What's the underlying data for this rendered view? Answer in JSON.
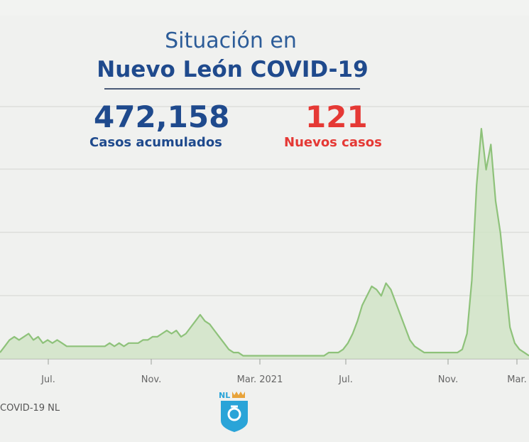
{
  "header": {
    "line1": "Situación en",
    "line2": "Nuevo León COVID-19"
  },
  "stats": {
    "cumulative_value": "472,158",
    "cumulative_label": "Casos acumulados",
    "new_value": "121",
    "new_label": "Nuevos casos"
  },
  "footer": {
    "source": "COVID-19 NL",
    "logo_text": "NL"
  },
  "colors": {
    "line": "#8ec27a",
    "fill": "#cfe3c4",
    "grid": "#d3d5d2",
    "accent_blue": "#1f4a8d",
    "accent_red": "#e53935"
  },
  "chart_data": {
    "type": "area",
    "title": "",
    "xlabel": "",
    "ylabel": "",
    "grid": true,
    "x_ticks": [
      "Jul.",
      "Nov.",
      "Mar. 2021",
      "Jul.",
      "Nov.",
      "Mar."
    ],
    "series": [
      {
        "values": [
          2,
          4,
          6,
          7,
          6,
          7,
          8,
          6,
          7,
          5,
          6,
          5,
          6,
          5,
          4,
          4,
          4,
          4,
          4,
          4,
          4,
          4,
          4,
          5,
          4,
          5,
          4,
          5,
          5,
          5,
          6,
          6,
          7,
          7,
          8,
          9,
          8,
          9,
          7,
          8,
          10,
          12,
          14,
          12,
          11,
          9,
          7,
          5,
          3,
          2,
          2,
          1,
          1,
          1,
          1,
          1,
          1,
          1,
          1,
          1,
          1,
          1,
          1,
          1,
          1,
          1,
          1,
          1,
          1,
          2,
          2,
          2,
          3,
          5,
          8,
          12,
          17,
          20,
          23,
          22,
          20,
          24,
          22,
          18,
          14,
          10,
          6,
          4,
          3,
          2,
          2,
          2,
          2,
          2,
          2,
          2,
          2,
          3,
          8,
          25,
          55,
          73,
          60,
          68,
          50,
          40,
          25,
          10,
          5,
          3,
          2,
          1
        ]
      }
    ]
  }
}
